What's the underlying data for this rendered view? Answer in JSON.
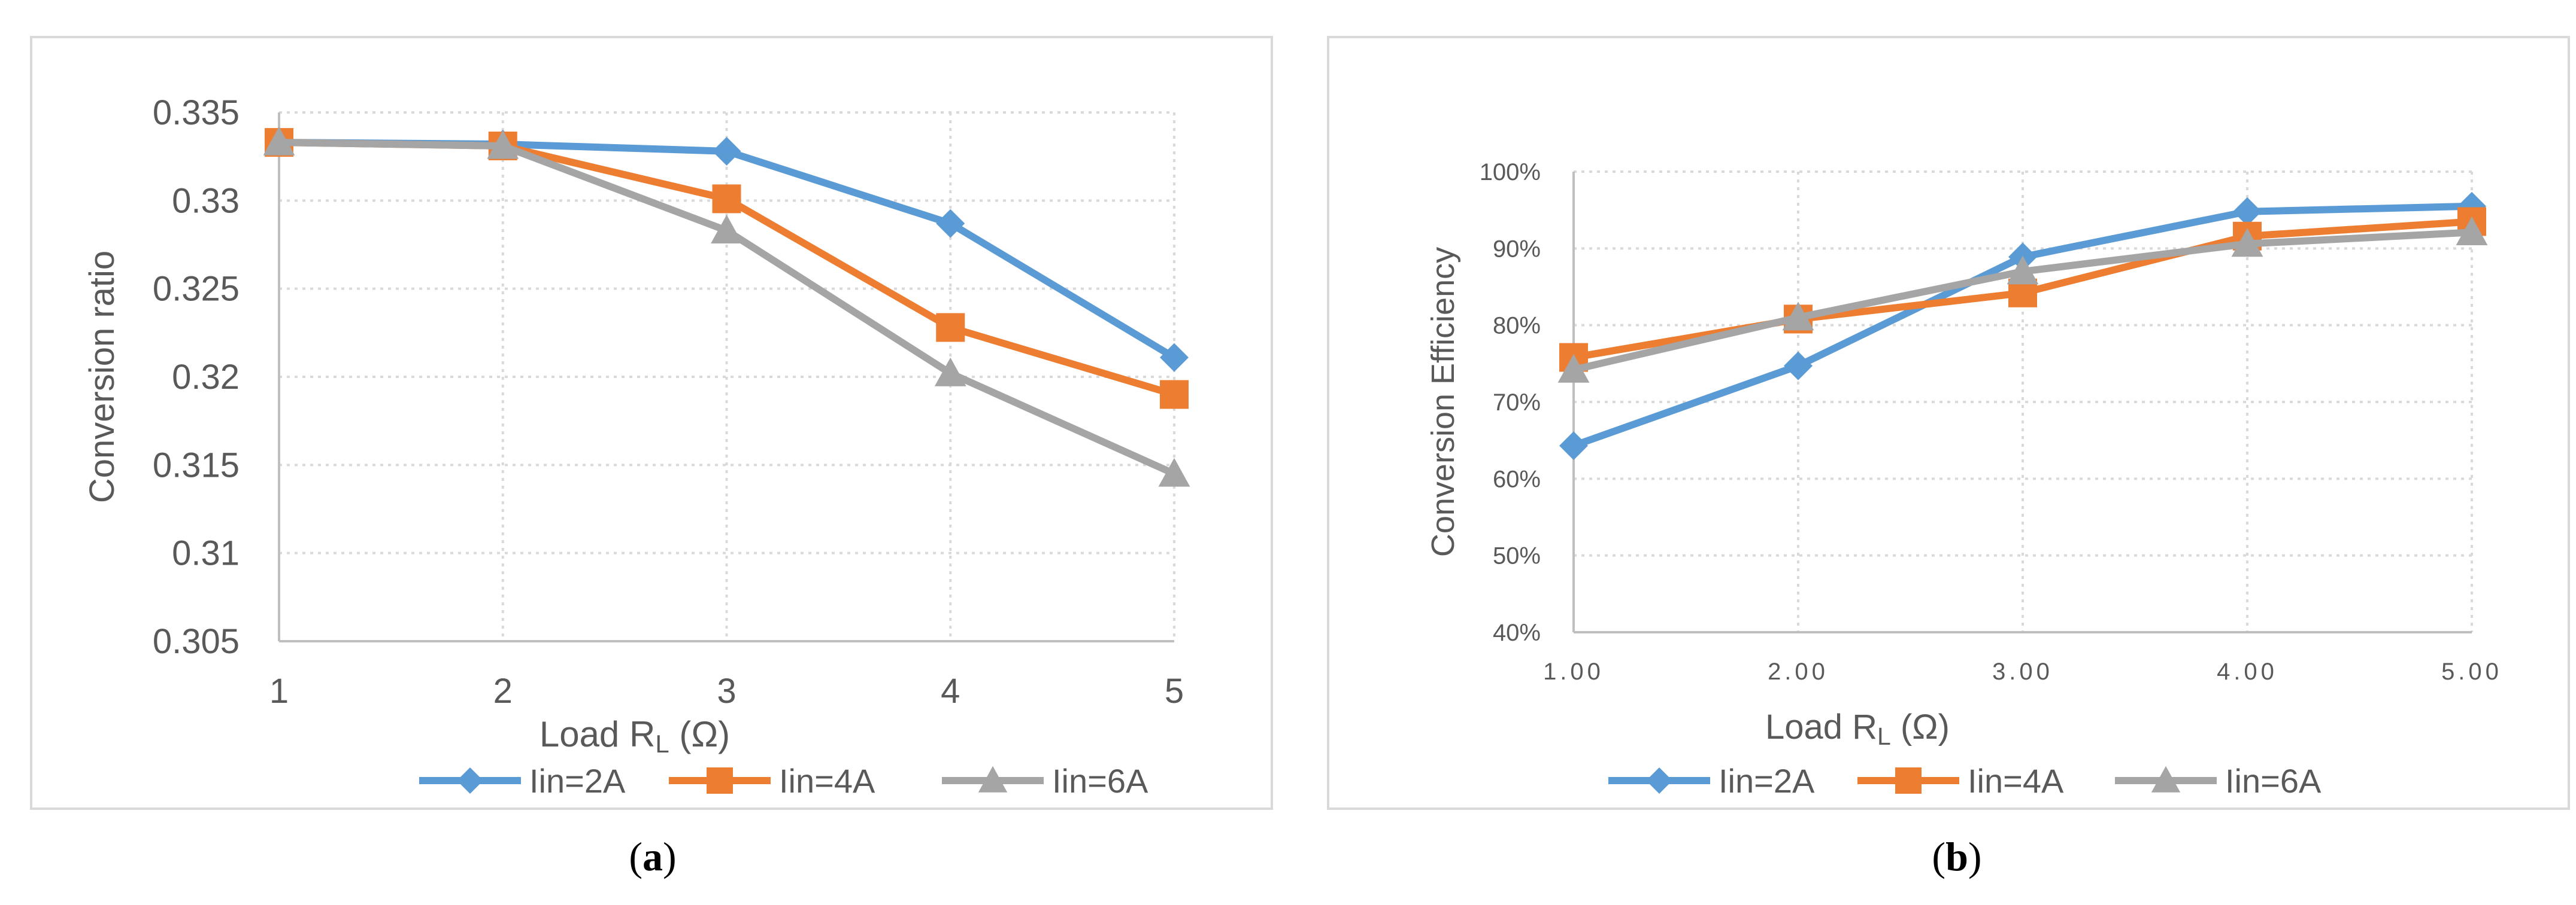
{
  "colors": {
    "series_1": "#5b9bd5",
    "series_2": "#ed7d31",
    "series_3": "#a5a5a5",
    "grid": "#d9d9d9",
    "axis": "#bfbfbf",
    "text": "#595959",
    "frame": "#d9d9d9"
  },
  "legend_labels": [
    "Iin=2A",
    "Iin=4A",
    "Iin=6A"
  ],
  "chart_data": [
    {
      "type": "line",
      "caption_letter": "a",
      "caption_open": "(",
      "caption_close": ")",
      "title": "",
      "xlabel": "Load RL (Ω)",
      "xlabel_main": "Load R",
      "xlabel_sub": "L",
      "xlabel_tail": " (Ω)",
      "ylabel": "Conversion ratio",
      "categories": [
        "1",
        "2",
        "3",
        "4",
        "5"
      ],
      "ylim": [
        0.305,
        0.335
      ],
      "yticks": [
        "0.305",
        "0.31",
        "0.315",
        "0.32",
        "0.325",
        "0.33",
        "0.335"
      ],
      "ytick_values": [
        0.305,
        0.31,
        0.315,
        0.32,
        0.325,
        0.33,
        0.335
      ],
      "grid": true,
      "legend_position": "bottom",
      "series": [
        {
          "name": "Iin=2A",
          "marker": "diamond",
          "values": [
            0.3333,
            0.3332,
            0.3328,
            0.3287,
            0.3211
          ]
        },
        {
          "name": "Iin=4A",
          "marker": "square",
          "values": [
            0.3333,
            0.3331,
            0.3301,
            0.3228,
            0.319
          ]
        },
        {
          "name": "Iin=6A",
          "marker": "triangle",
          "values": [
            0.3333,
            0.3331,
            0.3283,
            0.3202,
            0.3145
          ]
        }
      ]
    },
    {
      "type": "line",
      "caption_letter": "b",
      "caption_open": "(",
      "caption_close": ")",
      "title": "",
      "xlabel": "Load RL (Ω)",
      "xlabel_main": "Load R",
      "xlabel_sub": "L",
      "xlabel_tail": " (Ω)",
      "ylabel": "Conversion Efficiency",
      "categories": [
        "1.00",
        "2.00",
        "3.00",
        "4.00",
        "5.00"
      ],
      "ylim": [
        40,
        100
      ],
      "yticks": [
        "40%",
        "50%",
        "60%",
        "70%",
        "80%",
        "90%",
        "100%"
      ],
      "ytick_values": [
        40,
        50,
        60,
        70,
        80,
        90,
        100
      ],
      "grid": true,
      "legend_position": "bottom",
      "series": [
        {
          "name": "Iin=2A",
          "marker": "diamond",
          "values": [
            64.3,
            74.7,
            88.9,
            94.8,
            95.5
          ]
        },
        {
          "name": "Iin=4A",
          "marker": "square",
          "values": [
            75.8,
            80.8,
            84.2,
            91.6,
            93.5
          ]
        },
        {
          "name": "Iin=6A",
          "marker": "triangle",
          "values": [
            74.2,
            81.0,
            87.0,
            90.6,
            92.1
          ]
        }
      ]
    }
  ]
}
